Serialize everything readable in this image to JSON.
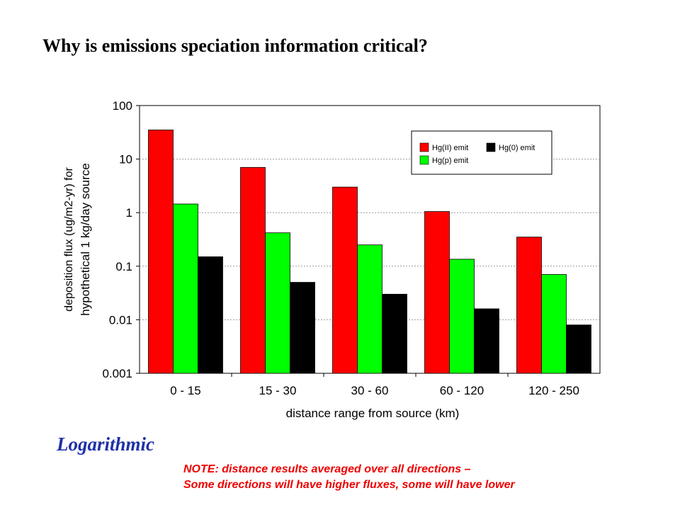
{
  "slide": {
    "title": "Why is emissions speciation information critical?",
    "scale_label": "Logarithmic",
    "note_line1": "NOTE: distance results averaged over all directions –",
    "note_line2": "Some directions will have higher fluxes, some will have lower"
  },
  "chart_data": {
    "type": "bar",
    "categories": [
      "0 - 15",
      "15 - 30",
      "30 - 60",
      "60 - 120",
      "120 - 250"
    ],
    "series": [
      {
        "name": "Hg(II) emit",
        "color": "#ff0000",
        "values": [
          35,
          7,
          3,
          1.05,
          0.35
        ]
      },
      {
        "name": "Hg(p) emit",
        "color": "#00ff00",
        "values": [
          1.45,
          0.42,
          0.25,
          0.135,
          0.07
        ]
      },
      {
        "name": "Hg(0) emit",
        "color": "#000000",
        "values": [
          0.15,
          0.05,
          0.03,
          0.016,
          0.008
        ]
      }
    ],
    "xlabel": "distance range from source (km)",
    "ylabel_line1": "deposition flux (ug/m2-yr) for",
    "ylabel_line2": "hypothetical 1 kg/day source",
    "yscale": "log",
    "ylim": [
      0.001,
      100
    ],
    "yticks": [
      "0.001",
      "0.01",
      "0.1",
      "1",
      "10",
      "100"
    ],
    "grid": true,
    "legend_position": "top-right"
  }
}
